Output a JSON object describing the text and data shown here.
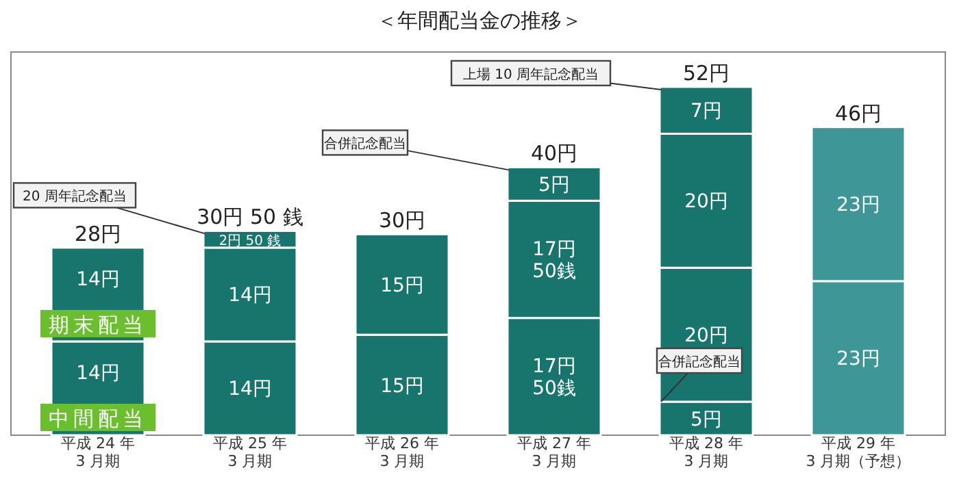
{
  "chart_data": {
    "type": "bar",
    "stacked": true,
    "title": "＜年間配当金の推移＞",
    "categories": [
      "平成 24 年\n3 月期",
      "平成 25 年\n3 月期",
      "平成 26 年\n3 月期",
      "平成 27 年\n3 月期",
      "平成 28 年\n3 月期",
      "平成 29 年\n3 月期（予想）"
    ],
    "series": [
      {
        "colors": [
          null,
          null,
          null,
          null,
          "#17756e",
          null
        ],
        "values": [
          null,
          null,
          null,
          null,
          5,
          null
        ],
        "value_labels": [
          null,
          null,
          null,
          null,
          "5円",
          null
        ]
      },
      {
        "name": "中間配当",
        "colors": [
          "#17756e",
          "#17756e",
          "#17756e",
          "#17756e",
          "#17756e",
          "#3e9696"
        ],
        "values": [
          14,
          14,
          15,
          17.5,
          20,
          23
        ],
        "value_labels": [
          "14円",
          "14円",
          "15円",
          "17円\n50銭",
          "20円",
          "23円"
        ]
      },
      {
        "name": "期末配当",
        "colors": [
          "#17756e",
          "#17756e",
          "#17756e",
          "#17756e",
          "#17756e",
          "#3e9696"
        ],
        "values": [
          14,
          14,
          15,
          17.5,
          20,
          23
        ],
        "value_labels": [
          "14円",
          "14円",
          "15円",
          "17円\n50銭",
          "20円",
          "23円"
        ]
      },
      {
        "colors": [
          null,
          "#17756e",
          null,
          "#17756e",
          "#17756e",
          null
        ],
        "values": [
          null,
          2.5,
          null,
          5,
          7,
          null
        ],
        "value_labels": [
          null,
          "2円 50 銭",
          null,
          "5円",
          "7円",
          null
        ]
      }
    ],
    "totals": [
      "28円",
      "30円 50 銭",
      "30円",
      "40円",
      "52円",
      "46円"
    ],
    "annotations": [
      "20 周年記念配当",
      "合併記念配当",
      "上場 10 周年記念配当",
      {
        "text": "合併記念配当",
        "x": "平成 28 年\n3 月期",
        "y": 5
      }
    ]
  }
}
